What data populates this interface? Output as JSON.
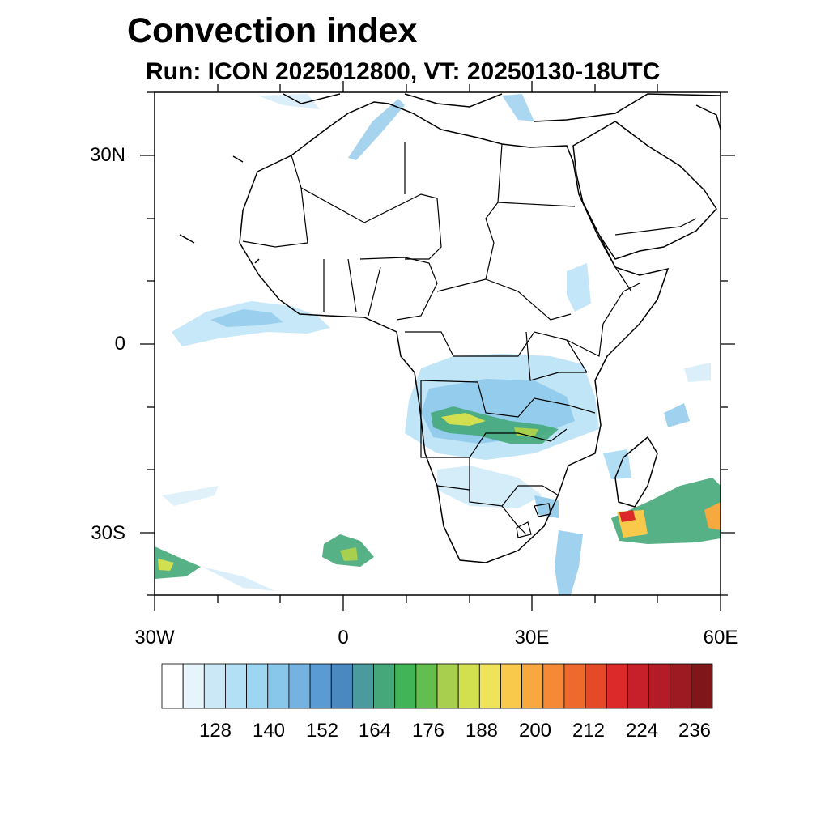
{
  "title": "Convection index",
  "subtitle": "Run: ICON 2025012800,  VT: 20250130-18UTC",
  "map": {
    "projection": "cylindrical equidistant",
    "lon_range": [
      -30,
      60
    ],
    "lat_range": [
      -40,
      40
    ],
    "lat_labels": [
      "30N",
      "0",
      "30S"
    ],
    "lon_labels": [
      "30W",
      "0",
      "30E",
      "60E"
    ]
  },
  "colorbar": {
    "labels": [
      "128",
      "140",
      "152",
      "164",
      "176",
      "188",
      "200",
      "212",
      "224",
      "236"
    ],
    "colors": [
      "#ffffff",
      "#e6f4fb",
      "#cbe8f6",
      "#b4e0f6",
      "#9dd6f2",
      "#88c6ea",
      "#74b3e0",
      "#5a9bd3",
      "#4a89c0",
      "#4a9a9e",
      "#45a87a",
      "#41b458",
      "#63bd4f",
      "#a8cf4e",
      "#d2e050",
      "#efe35a",
      "#f8c94a",
      "#f7a83f",
      "#f58935",
      "#ee6a2c",
      "#e54a28",
      "#dc2a2a",
      "#c8202b",
      "#b31b27",
      "#9e1a22",
      "#7f1619"
    ]
  }
}
